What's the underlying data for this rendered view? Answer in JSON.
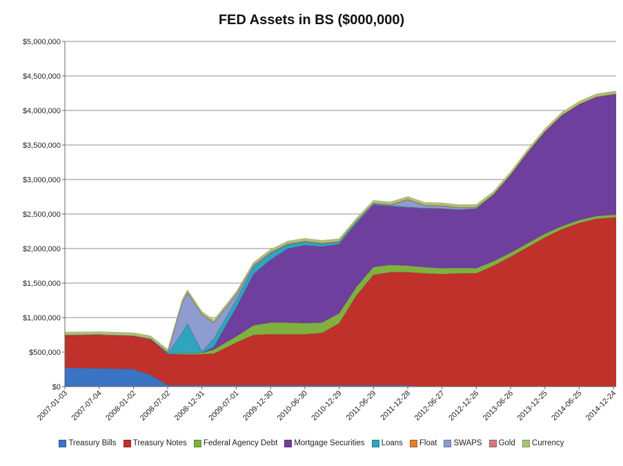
{
  "chart_data": {
    "type": "area",
    "stacked": true,
    "title": "FED Assets in BS ($000,000)",
    "xlabel": "",
    "ylabel": "",
    "ylim": [
      0,
      5000000
    ],
    "y_ticks": [
      "$0",
      "$500,000",
      "$1,000,000",
      "$1,500,000",
      "$2,000,000",
      "$2,500,000",
      "$3,000,000",
      "$3,500,000",
      "$4,000,000",
      "$4,500,000",
      "$5,000,000"
    ],
    "x_ticks": [
      "2007-01-03",
      "2007-07-04",
      "2008-01-02",
      "2008-07-02",
      "2008-12-31",
      "2009-07-01",
      "2009-12-30",
      "2010-06-30",
      "2010-12-29",
      "2011-06-29",
      "2011-12-28",
      "2012-06-27",
      "2012-12-26",
      "2013-06-26",
      "2013-12-25",
      "2014-06-25",
      "2014-12-24"
    ],
    "grid": true,
    "legend_position": "bottom",
    "x": [
      "2007-01-03",
      "2007-07-04",
      "2008-01-02",
      "2008-04-02",
      "2008-07-02",
      "2008-09-17",
      "2008-10-15",
      "2008-12-31",
      "2009-03-04",
      "2009-07-01",
      "2009-09-30",
      "2009-12-30",
      "2010-03-31",
      "2010-06-30",
      "2010-09-29",
      "2010-12-29",
      "2011-03-30",
      "2011-06-29",
      "2011-09-28",
      "2011-12-28",
      "2012-03-28",
      "2012-06-27",
      "2012-09-26",
      "2012-12-26",
      "2013-03-27",
      "2013-06-26",
      "2013-09-25",
      "2013-12-25",
      "2014-03-26",
      "2014-06-25",
      "2014-09-24",
      "2014-12-24",
      "2015-01-07"
    ],
    "series": [
      {
        "name": "Treasury Bills",
        "color": "#3a74c4",
        "values": [
          270000,
          265000,
          250000,
          170000,
          20000,
          18000,
          18000,
          18000,
          18000,
          18000,
          18000,
          18000,
          18000,
          18000,
          18000,
          18000,
          18000,
          18000,
          18000,
          18000,
          0,
          0,
          0,
          0,
          0,
          0,
          0,
          0,
          0,
          0,
          0,
          0,
          0
        ]
      },
      {
        "name": "Treasury Notes",
        "color": "#c0312b",
        "values": [
          470000,
          480000,
          480000,
          510000,
          450000,
          450000,
          450000,
          450000,
          460000,
          620000,
          730000,
          740000,
          740000,
          740000,
          760000,
          900000,
          1300000,
          1600000,
          1640000,
          1640000,
          1640000,
          1630000,
          1640000,
          1640000,
          1750000,
          1880000,
          2020000,
          2160000,
          2280000,
          2370000,
          2430000,
          2450000,
          2450000
        ]
      },
      {
        "name": "Federal Agency Debt",
        "color": "#80b040",
        "values": [
          0,
          0,
          0,
          0,
          0,
          15000,
          15000,
          20000,
          60000,
          90000,
          140000,
          170000,
          170000,
          160000,
          150000,
          145000,
          125000,
          115000,
          105000,
          95000,
          90000,
          85000,
          80000,
          75000,
          65000,
          60000,
          57000,
          55000,
          45000,
          42000,
          40000,
          39000,
          39000
        ]
      },
      {
        "name": "Mortgage Securities",
        "color": "#6f3f9e",
        "values": [
          0,
          0,
          0,
          0,
          0,
          0,
          0,
          0,
          40000,
          420000,
          740000,
          910000,
          1070000,
          1130000,
          1100000,
          1000000,
          920000,
          900000,
          850000,
          840000,
          850000,
          860000,
          840000,
          860000,
          960000,
          1120000,
          1310000,
          1470000,
          1600000,
          1670000,
          1720000,
          1740000,
          1740000
        ]
      },
      {
        "name": "Loans",
        "color": "#2ea5bd",
        "values": [
          0,
          0,
          0,
          5000,
          10000,
          300000,
          430000,
          20000,
          120000,
          110000,
          100000,
          90000,
          60000,
          50000,
          40000,
          30000,
          25000,
          15000,
          12000,
          10000,
          8000,
          6000,
          5000,
          4000,
          2000,
          2000,
          1000,
          1000,
          0,
          0,
          0,
          0,
          0
        ]
      },
      {
        "name": "Float",
        "color": "#e0822b",
        "values": [
          0,
          0,
          0,
          0,
          0,
          0,
          0,
          0,
          0,
          0,
          0,
          0,
          0,
          0,
          0,
          0,
          0,
          0,
          0,
          0,
          0,
          0,
          0,
          0,
          0,
          0,
          0,
          0,
          0,
          0,
          0,
          0,
          0
        ]
      },
      {
        "name": "SWAPS",
        "color": "#8e9ccf",
        "values": [
          0,
          0,
          0,
          0,
          10000,
          430000,
          440000,
          530000,
          220000,
          70000,
          20000,
          10000,
          0,
          0,
          0,
          0,
          0,
          0,
          0,
          100000,
          30000,
          30000,
          20000,
          10000,
          0,
          0,
          0,
          0,
          0,
          0,
          0,
          0,
          0
        ]
      },
      {
        "name": "Gold",
        "color": "#d07a7a",
        "values": [
          11000,
          11000,
          11000,
          11000,
          11000,
          11000,
          11000,
          11000,
          11000,
          11000,
          11000,
          11000,
          11000,
          11000,
          11000,
          11000,
          11000,
          11000,
          11000,
          11000,
          11000,
          11000,
          11000,
          11000,
          11000,
          11000,
          11000,
          11000,
          11000,
          11000,
          11000,
          11000,
          11000
        ]
      },
      {
        "name": "Currency",
        "color": "#a8c470",
        "values": [
          40000,
          40000,
          40000,
          40000,
          40000,
          40000,
          40000,
          40000,
          40000,
          40000,
          40000,
          40000,
          40000,
          40000,
          40000,
          40000,
          40000,
          40000,
          40000,
          40000,
          40000,
          40000,
          40000,
          40000,
          40000,
          40000,
          40000,
          40000,
          40000,
          40000,
          40000,
          40000,
          40000
        ]
      }
    ]
  }
}
